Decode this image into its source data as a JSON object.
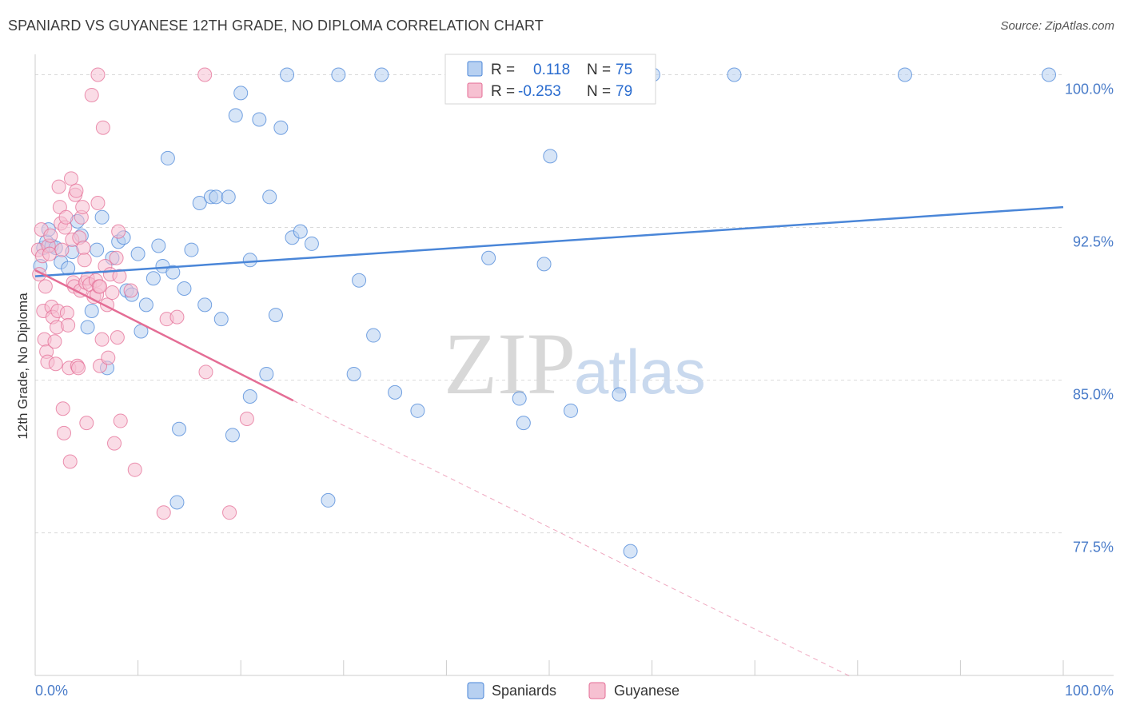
{
  "title": "SPANIARD VS GUYANESE 12TH GRADE, NO DIPLOMA CORRELATION CHART",
  "source": "Source: ZipAtlas.com",
  "watermark": {
    "zip": "ZIP",
    "atlas": "atlas"
  },
  "colors": {
    "spaniards": "#4a86d8",
    "spaniards_fill": "#b7d0f1",
    "guyanese": "#e46d95",
    "guyanese_fill": "#f6c0d1",
    "axis_tick_text": "#4a7cc9",
    "grid": "#d9d9d9"
  },
  "legend": {
    "rows": [
      {
        "r_label": "R =",
        "r_value": "0.118",
        "n_label": "N =",
        "n_value": "75"
      },
      {
        "r_label": "R =",
        "r_value": "-0.253",
        "n_label": "N =",
        "n_value": "79"
      }
    ]
  },
  "chart_data": {
    "type": "scatter",
    "title": "SPANIARD VS GUYANESE 12TH GRADE, NO DIPLOMA CORRELATION CHART",
    "xlabel": "",
    "ylabel": "12th Grade, No Diploma",
    "xlim": [
      0,
      100
    ],
    "ylim": [
      70.5,
      101.0
    ],
    "x_tick_labels": [
      "0.0%",
      "100.0%"
    ],
    "y_ticks": [
      77.5,
      85.0,
      92.5,
      100.0
    ],
    "y_tick_labels": [
      "77.5%",
      "85.0%",
      "92.5%",
      "100.0%"
    ],
    "grid": true,
    "legend_position": "top-center",
    "series": [
      {
        "name": "Spaniards",
        "r": 0.118,
        "n": 75,
        "trend": {
          "x": [
            0,
            100
          ],
          "y": [
            90.1,
            93.5
          ],
          "dashed_extension": false
        },
        "points": [
          [
            0.5,
            90.6
          ],
          [
            0.8,
            91.5
          ],
          [
            1.1,
            91.8
          ],
          [
            1.3,
            92.4
          ],
          [
            1.6,
            91.6
          ],
          [
            2.0,
            91.5
          ],
          [
            2.5,
            90.8
          ],
          [
            3.2,
            90.5
          ],
          [
            3.6,
            91.3
          ],
          [
            4.1,
            92.8
          ],
          [
            4.5,
            92.1
          ],
          [
            5.1,
            87.6
          ],
          [
            5.5,
            88.4
          ],
          [
            6.0,
            91.4
          ],
          [
            6.5,
            93.0
          ],
          [
            7.0,
            85.6
          ],
          [
            7.5,
            91.0
          ],
          [
            8.1,
            91.8
          ],
          [
            8.6,
            92.0
          ],
          [
            8.9,
            89.4
          ],
          [
            9.4,
            89.2
          ],
          [
            10.0,
            91.2
          ],
          [
            10.3,
            87.4
          ],
          [
            10.8,
            88.7
          ],
          [
            11.5,
            90.0
          ],
          [
            12.0,
            91.6
          ],
          [
            12.4,
            90.6
          ],
          [
            12.9,
            95.9
          ],
          [
            13.4,
            90.3
          ],
          [
            14.0,
            82.6
          ],
          [
            13.8,
            79.0
          ],
          [
            14.5,
            89.5
          ],
          [
            15.2,
            91.4
          ],
          [
            16.0,
            93.7
          ],
          [
            16.5,
            88.7
          ],
          [
            17.1,
            94.0
          ],
          [
            17.6,
            94.0
          ],
          [
            18.1,
            88.0
          ],
          [
            18.8,
            94.0
          ],
          [
            19.2,
            82.3
          ],
          [
            19.5,
            98.0
          ],
          [
            20.0,
            99.1
          ],
          [
            20.9,
            90.9
          ],
          [
            20.9,
            84.2
          ],
          [
            21.8,
            97.8
          ],
          [
            22.5,
            85.3
          ],
          [
            22.8,
            94.0
          ],
          [
            23.4,
            88.2
          ],
          [
            23.9,
            97.4
          ],
          [
            24.5,
            100.0
          ],
          [
            25.0,
            92.0
          ],
          [
            25.8,
            92.3
          ],
          [
            26.9,
            91.7
          ],
          [
            28.5,
            79.1
          ],
          [
            29.5,
            100.0
          ],
          [
            31.0,
            85.3
          ],
          [
            31.5,
            89.9
          ],
          [
            32.9,
            87.2
          ],
          [
            33.7,
            100.0
          ],
          [
            35.0,
            84.4
          ],
          [
            37.2,
            83.5
          ],
          [
            41.3,
            100.0
          ],
          [
            44.1,
            91.0
          ],
          [
            47.1,
            84.1
          ],
          [
            47.5,
            82.9
          ],
          [
            50.1,
            96.0
          ],
          [
            49.5,
            90.7
          ],
          [
            51.4,
            100.0
          ],
          [
            52.1,
            83.5
          ],
          [
            56.8,
            84.3
          ],
          [
            57.9,
            76.6
          ],
          [
            60.1,
            100.0
          ],
          [
            68.0,
            100.0
          ],
          [
            84.6,
            100.0
          ],
          [
            98.6,
            100.0
          ]
        ]
      },
      {
        "name": "Guyanese",
        "r": -0.253,
        "n": 79,
        "trend": {
          "x": [
            0,
            25.1
          ],
          "y": [
            90.4,
            84.0
          ],
          "dashed_extension": true,
          "dashed_to": {
            "x": 79.5,
            "y": 70.4
          }
        },
        "points": [
          [
            0.3,
            91.4
          ],
          [
            0.4,
            90.2
          ],
          [
            0.6,
            92.4
          ],
          [
            0.7,
            91.1
          ],
          [
            0.8,
            88.4
          ],
          [
            0.9,
            87.0
          ],
          [
            1.0,
            89.6
          ],
          [
            1.1,
            86.4
          ],
          [
            1.2,
            85.9
          ],
          [
            1.3,
            91.6
          ],
          [
            1.4,
            91.2
          ],
          [
            1.5,
            92.1
          ],
          [
            1.6,
            88.6
          ],
          [
            1.7,
            88.1
          ],
          [
            1.9,
            86.9
          ],
          [
            2.0,
            85.8
          ],
          [
            2.1,
            87.6
          ],
          [
            2.2,
            88.4
          ],
          [
            2.3,
            94.5
          ],
          [
            2.4,
            93.5
          ],
          [
            2.5,
            92.7
          ],
          [
            2.6,
            91.4
          ],
          [
            2.7,
            83.6
          ],
          [
            2.8,
            82.4
          ],
          [
            2.9,
            92.5
          ],
          [
            3.0,
            93.0
          ],
          [
            3.1,
            88.3
          ],
          [
            3.2,
            87.7
          ],
          [
            3.3,
            85.6
          ],
          [
            3.4,
            81.0
          ],
          [
            3.5,
            94.9
          ],
          [
            3.6,
            91.9
          ],
          [
            3.7,
            89.8
          ],
          [
            3.8,
            89.6
          ],
          [
            3.9,
            94.1
          ],
          [
            4.0,
            94.3
          ],
          [
            4.1,
            85.7
          ],
          [
            4.2,
            85.6
          ],
          [
            4.3,
            92.0
          ],
          [
            4.4,
            89.4
          ],
          [
            4.5,
            93.0
          ],
          [
            4.6,
            93.5
          ],
          [
            4.7,
            91.5
          ],
          [
            4.8,
            90.9
          ],
          [
            4.9,
            89.8
          ],
          [
            5.0,
            82.9
          ],
          [
            5.1,
            90.0
          ],
          [
            5.3,
            89.7
          ],
          [
            5.5,
            99.0
          ],
          [
            5.7,
            89.1
          ],
          [
            5.9,
            89.9
          ],
          [
            6.0,
            89.2
          ],
          [
            6.1,
            93.7
          ],
          [
            6.2,
            89.6
          ],
          [
            6.3,
            85.7
          ],
          [
            6.5,
            87.0
          ],
          [
            6.6,
            97.4
          ],
          [
            6.8,
            90.6
          ],
          [
            7.0,
            88.7
          ],
          [
            7.1,
            86.1
          ],
          [
            7.3,
            90.2
          ],
          [
            7.5,
            89.3
          ],
          [
            7.7,
            81.9
          ],
          [
            7.9,
            91.0
          ],
          [
            8.0,
            87.1
          ],
          [
            8.1,
            92.3
          ],
          [
            8.2,
            90.1
          ],
          [
            8.3,
            83.0
          ],
          [
            9.3,
            89.4
          ],
          [
            9.7,
            80.6
          ],
          [
            12.5,
            78.5
          ],
          [
            12.8,
            88.0
          ],
          [
            13.8,
            88.1
          ],
          [
            16.5,
            100.0
          ],
          [
            16.6,
            85.4
          ],
          [
            18.9,
            78.5
          ],
          [
            20.6,
            83.1
          ],
          [
            6.1,
            100.0
          ],
          [
            6.3,
            89.6
          ]
        ]
      }
    ]
  },
  "bottom_legend": [
    "Spaniards",
    "Guyanese"
  ]
}
